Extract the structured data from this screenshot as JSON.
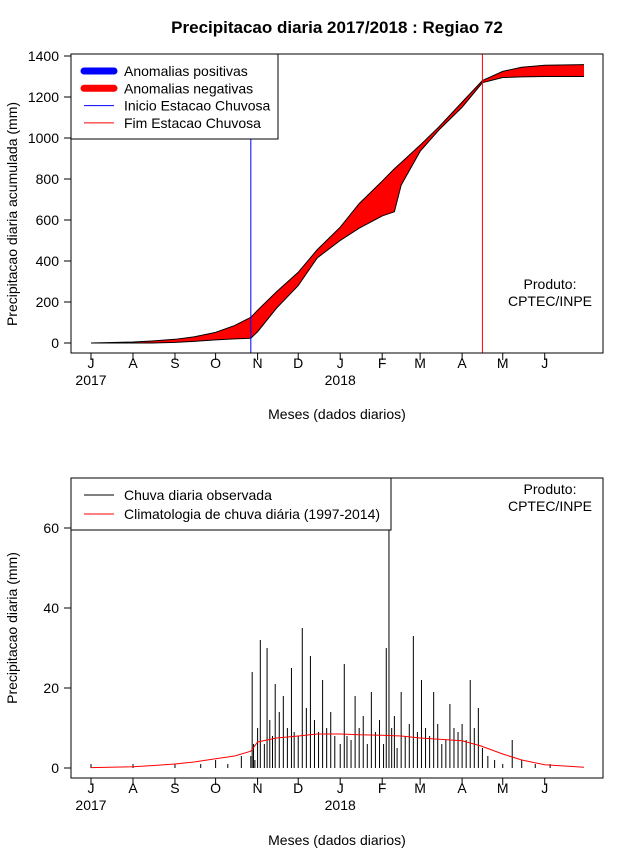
{
  "title": "Precipitacao diaria 2017/2018 : Regiao 72",
  "product_note": [
    "Produto:",
    "CPTEC/INPE"
  ],
  "chart_data": [
    {
      "id": "top",
      "type": "area",
      "ylabel": "Precipitacao diaria acumulada (mm)",
      "xlabel": "Meses (dados diarios)",
      "ylim": [
        0,
        1400
      ],
      "yticks": [
        0,
        200,
        400,
        600,
        800,
        1000,
        1200,
        1400
      ],
      "xlim_days": [
        1,
        365
      ],
      "month_ticks": [
        "J",
        "A",
        "S",
        "O",
        "N",
        "D",
        "J",
        "F",
        "M",
        "A",
        "M",
        "J"
      ],
      "year_labels": [
        {
          "text": "2017",
          "at_tick": 0
        },
        {
          "text": "2018",
          "at_tick": 6
        }
      ],
      "legend": {
        "position": "top-left",
        "entries": [
          {
            "label": "Anomalias positivas",
            "color": "#0000ff",
            "style": "thick"
          },
          {
            "label": "Anomalias negativas",
            "color": "#ff0000",
            "style": "thick"
          },
          {
            "label": "Inicio Estacao Chuvosa",
            "color": "#0000ff",
            "style": "thin"
          },
          {
            "label": "Fim Estacao Chuvosa",
            "color": "#ff0000",
            "style": "thin"
          }
        ]
      },
      "start_rainy_season": "2017-10-27",
      "end_rainy_season": "2018-04-16",
      "series": [
        {
          "name": "Anomalias negativas",
          "color": "#ff0000",
          "x": [
            "2017-07-01",
            "2017-08-01",
            "2017-08-15",
            "2017-09-01",
            "2017-09-15",
            "2017-10-01",
            "2017-10-15",
            "2017-10-27",
            "2017-11-01",
            "2017-11-15",
            "2017-12-01",
            "2017-12-15",
            "2018-01-01",
            "2018-01-15",
            "2018-02-01",
            "2018-02-10",
            "2018-02-15",
            "2018-03-01",
            "2018-03-15",
            "2018-04-01",
            "2018-04-16",
            "2018-05-01",
            "2018-05-15",
            "2018-06-01",
            "2018-06-30"
          ],
          "climatology": [
            0,
            5,
            10,
            18,
            30,
            52,
            85,
            125,
            160,
            250,
            345,
            455,
            565,
            680,
            790,
            850,
            880,
            965,
            1055,
            1175,
            1280,
            1325,
            1345,
            1355,
            1358
          ],
          "observed": [
            0,
            0,
            0,
            3,
            8,
            15,
            20,
            23,
            55,
            170,
            280,
            415,
            500,
            560,
            620,
            640,
            770,
            935,
            1040,
            1150,
            1270,
            1295,
            1298,
            1300,
            1300
          ]
        }
      ]
    },
    {
      "id": "bottom",
      "type": "bar",
      "ylabel": "Precipitacao diaria (mm)",
      "xlabel": "Meses (dados diarios)",
      "ylim": [
        0,
        75
      ],
      "yticks": [
        0,
        20,
        40,
        60
      ],
      "xlim_days": [
        1,
        365
      ],
      "month_ticks": [
        "J",
        "A",
        "S",
        "O",
        "N",
        "D",
        "J",
        "F",
        "M",
        "A",
        "M",
        "J"
      ],
      "year_labels": [
        {
          "text": "2017",
          "at_tick": 0
        },
        {
          "text": "2018",
          "at_tick": 6
        }
      ],
      "legend": {
        "position": "top-left",
        "entries": [
          {
            "label": "Chuva diaria observada",
            "color": "#000000",
            "style": "thin"
          },
          {
            "label": "Climatologia de chuva diária (1997-2014)",
            "color": "#ff0000",
            "style": "thin"
          }
        ]
      },
      "series": [
        {
          "name": "Chuva diaria observada",
          "color": "#000000",
          "x": [
            "2017-07-01",
            "2017-08-01",
            "2017-09-01",
            "2017-09-20",
            "2017-10-01",
            "2017-10-10",
            "2017-10-20",
            "2017-10-27",
            "2017-10-28",
            "2017-10-29",
            "2017-10-30",
            "2017-11-01",
            "2017-11-03",
            "2017-11-06",
            "2017-11-08",
            "2017-11-10",
            "2017-11-12",
            "2017-11-14",
            "2017-11-17",
            "2017-11-20",
            "2017-11-23",
            "2017-11-26",
            "2017-11-28",
            "2017-12-01",
            "2017-12-04",
            "2017-12-07",
            "2017-12-10",
            "2017-12-13",
            "2017-12-16",
            "2017-12-19",
            "2017-12-22",
            "2017-12-25",
            "2017-12-28",
            "2018-01-01",
            "2018-01-04",
            "2018-01-06",
            "2018-01-09",
            "2018-01-12",
            "2018-01-15",
            "2018-01-18",
            "2018-01-21",
            "2018-01-24",
            "2018-01-27",
            "2018-01-30",
            "2018-02-02",
            "2018-02-04",
            "2018-02-06",
            "2018-02-08",
            "2018-02-10",
            "2018-02-12",
            "2018-02-15",
            "2018-02-18",
            "2018-02-21",
            "2018-02-24",
            "2018-02-27",
            "2018-03-02",
            "2018-03-05",
            "2018-03-08",
            "2018-03-11",
            "2018-03-14",
            "2018-03-17",
            "2018-03-20",
            "2018-03-23",
            "2018-03-26",
            "2018-03-29",
            "2018-04-01",
            "2018-04-04",
            "2018-04-07",
            "2018-04-10",
            "2018-04-13",
            "2018-04-16",
            "2018-04-20",
            "2018-04-25",
            "2018-05-01",
            "2018-05-08",
            "2018-05-15",
            "2018-05-25",
            "2018-06-05"
          ],
          "values": [
            1,
            1,
            1,
            1,
            2,
            1,
            3,
            3,
            24,
            6,
            2,
            10,
            32,
            6,
            30,
            12,
            8,
            21,
            14,
            18,
            10,
            25,
            9,
            8,
            35,
            15,
            28,
            12,
            9,
            22,
            10,
            14,
            8,
            6,
            26,
            8,
            7,
            18,
            10,
            13,
            6,
            19,
            9,
            12,
            6,
            30,
            63,
            10,
            13,
            5,
            19,
            8,
            11,
            33,
            9,
            22,
            10,
            8,
            19,
            11,
            6,
            7,
            16,
            10,
            9,
            11,
            7,
            22,
            10,
            15,
            5,
            3,
            2,
            1,
            7,
            2,
            1,
            1
          ]
        },
        {
          "name": "Climatologia de chuva diária (1997-2014)",
          "color": "#ff0000",
          "x": [
            "2017-07-01",
            "2017-08-01",
            "2017-08-15",
            "2017-09-01",
            "2017-09-15",
            "2017-10-01",
            "2017-10-15",
            "2017-10-27",
            "2017-11-01",
            "2017-11-15",
            "2017-12-01",
            "2017-12-15",
            "2018-01-01",
            "2018-01-15",
            "2018-02-01",
            "2018-02-15",
            "2018-03-01",
            "2018-03-15",
            "2018-04-01",
            "2018-04-15",
            "2018-05-01",
            "2018-05-15",
            "2018-06-01",
            "2018-06-30"
          ],
          "values": [
            0.1,
            0.3,
            0.6,
            1.0,
            1.5,
            2.3,
            3.0,
            4.2,
            6.5,
            7.5,
            8.0,
            8.5,
            8.5,
            8.3,
            8.2,
            8.0,
            7.5,
            7.2,
            6.8,
            5.5,
            3.5,
            2.0,
            0.8,
            0.2
          ]
        }
      ]
    }
  ]
}
